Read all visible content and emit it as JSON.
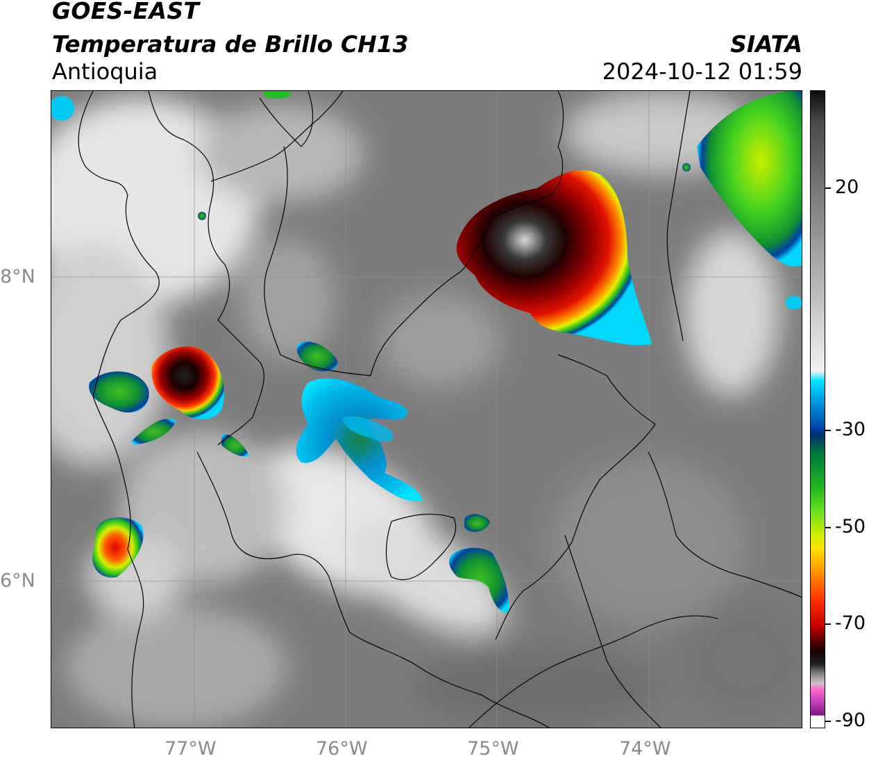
{
  "header": {
    "title": "GOES-EAST",
    "subtitle": "Temperatura de Brillo CH13",
    "region": "Antioquia",
    "organization": "SIATA",
    "datetime": "2024-10-12 01:59"
  },
  "map": {
    "lat_labels": [
      "8°N",
      "6°N"
    ],
    "lon_labels": [
      "77°W",
      "76°W",
      "75°W",
      "74°W"
    ]
  },
  "colorbar": {
    "tick_labels": [
      "20",
      "-30",
      "-50",
      "-70",
      "-90"
    ],
    "colors": {
      "warm": "#7f7f7f",
      "cold_edge": "#00e5ff",
      "green": "#1fb31f",
      "yellow": "#ffe000",
      "red": "#ff3000",
      "dark": "#1a0000",
      "magenta": "#c040c0"
    }
  }
}
